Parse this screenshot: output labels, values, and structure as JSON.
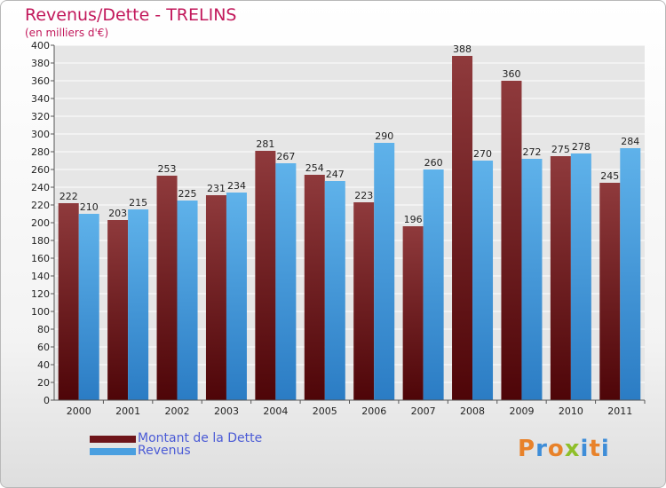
{
  "header": {
    "title": "Revenus/Dette - TRELINS",
    "subtitle": "(en milliers d'€)"
  },
  "legend": {
    "items": [
      {
        "label": "Montant de la Dette",
        "color": "#6e1419"
      },
      {
        "label": "Revenus",
        "color": "#4a9fe0"
      }
    ]
  },
  "logo": {
    "text": "Proxiti",
    "colors": [
      "#e8822a",
      "#3e8dd8",
      "#e8822a",
      "#8fbf2a",
      "#3e8dd8",
      "#e8822a",
      "#3e8dd8"
    ]
  },
  "chart_data": {
    "type": "bar",
    "title": "Revenus/Dette - TRELINS",
    "ylabel": "(en milliers d'€)",
    "categories": [
      "2000",
      "2001",
      "2002",
      "2003",
      "2004",
      "2005",
      "2006",
      "2007",
      "2008",
      "2009",
      "2010",
      "2011"
    ],
    "ylim": [
      0,
      400
    ],
    "ytick_step": 20,
    "series": [
      {
        "name": "Montant de la Dette",
        "color_top": "#8f3a3c",
        "color_bottom": "#4e0508",
        "values": [
          222,
          203,
          253,
          231,
          281,
          254,
          223,
          196,
          388,
          360,
          275,
          245
        ]
      },
      {
        "name": "Revenus",
        "color_top": "#5fb2ea",
        "color_bottom": "#2b7cc4",
        "values": [
          210,
          215,
          225,
          234,
          267,
          247,
          290,
          260,
          270,
          272,
          278,
          284
        ]
      }
    ],
    "grid": true,
    "legend_position": "bottom-left"
  }
}
